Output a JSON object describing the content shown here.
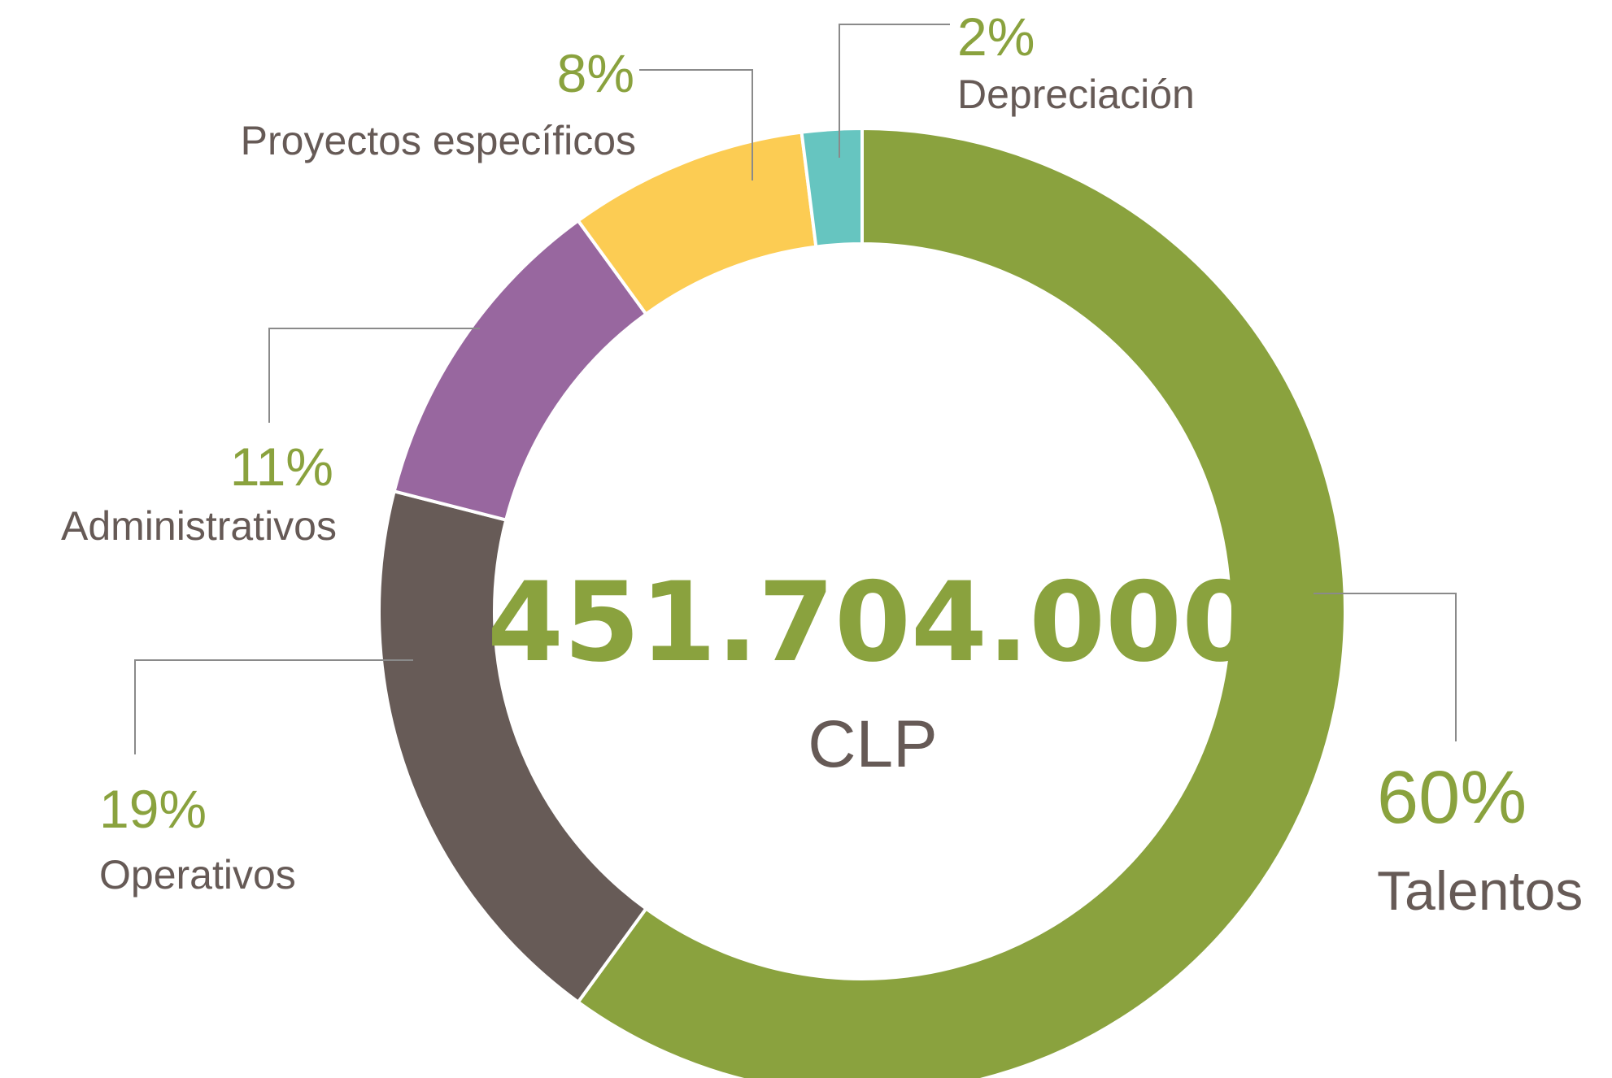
{
  "chart_data": {
    "type": "pie",
    "variant": "donut",
    "center": {
      "total": "451.704.000",
      "unit": "CLP"
    },
    "colors": {
      "percent_text": "#8aa23e",
      "label_text": "#665a56",
      "leader_line": "#8a8a8a"
    },
    "slices": [
      {
        "label": "Talentos",
        "percent_label": "60%",
        "value": 60,
        "color": "#8aa23e"
      },
      {
        "label": "Operativos",
        "percent_label": "19%",
        "value": 19,
        "color": "#675b57"
      },
      {
        "label": "Administrativos",
        "percent_label": "11%",
        "value": 11,
        "color": "#98679f"
      },
      {
        "label": "Proyectos específicos",
        "percent_label": "8%",
        "value": 8,
        "color": "#fccc53"
      },
      {
        "label": "Depreciación",
        "percent_label": "2%",
        "value": 2,
        "color": "#66c5c0"
      }
    ]
  }
}
